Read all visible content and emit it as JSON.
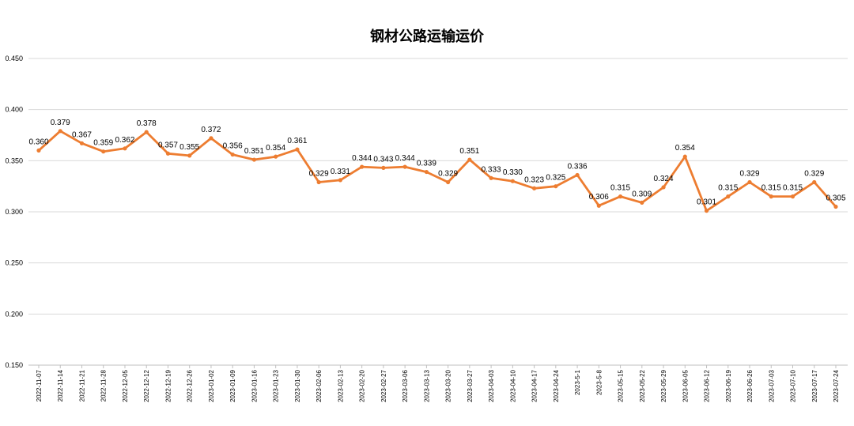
{
  "chart_data": {
    "type": "line",
    "title": "钢材公路运输运价",
    "xlabel": "",
    "ylabel": "",
    "ylim": [
      0.15,
      0.45
    ],
    "yticks": [
      "0.150",
      "0.200",
      "0.250",
      "0.300",
      "0.350",
      "0.400",
      "0.450"
    ],
    "grid": true,
    "legend": "none",
    "line_color": "#ED7D31",
    "categories": [
      "2022-11-07",
      "2022-11-14",
      "2022-11-21",
      "2022-11-28",
      "2022-12-05",
      "2022-12-12",
      "2022-12-19",
      "2022-12-26",
      "2023-01-02",
      "2023-01-09",
      "2023-01-16",
      "2023-01-23",
      "2023-01-30",
      "2023-02-06",
      "2023-02-13",
      "2023-02-20",
      "2023-02-27",
      "2023-03-06",
      "2023-03-13",
      "2023-03-20",
      "2023-03-27",
      "2023-04-03",
      "2023-04-10",
      "2023-04-17",
      "2023-04-24",
      "2023-5-1",
      "2023-5-8",
      "2023-05-15",
      "2023-05-22",
      "2023-05-29",
      "2023-06-05",
      "2023-06-12",
      "2023-06-19",
      "2023-06-26",
      "2023-07-03",
      "2023-07-10",
      "2023-07-17",
      "2023-07-24"
    ],
    "series": [
      {
        "values": [
          0.36,
          0.379,
          0.367,
          0.359,
          0.362,
          0.378,
          0.357,
          0.355,
          0.372,
          0.356,
          0.351,
          0.354,
          0.361,
          0.329,
          0.331,
          0.344,
          0.343,
          0.344,
          0.339,
          0.329,
          0.351,
          0.333,
          0.33,
          0.323,
          0.325,
          0.336,
          0.306,
          0.315,
          0.309,
          0.324,
          0.354,
          0.301,
          0.315,
          0.329,
          0.315,
          0.315,
          0.329,
          0.305
        ],
        "labels": [
          "0.360",
          "0.379",
          "0.367",
          "0.359",
          "0.362",
          "0.378",
          "0.357",
          "0.355",
          "0.372",
          "0.356",
          "0.351",
          "0.354",
          "0.361",
          "0.329",
          "0.331",
          "0.344",
          "0.343",
          "0.344",
          "0.339",
          "0.329",
          "0.351",
          "0.333",
          "0.330",
          "0.323",
          "0.325",
          "0.336",
          "0.306",
          "0.315",
          "0.309",
          "0.324",
          "0.354",
          "0.301",
          "0.315",
          "0.329",
          "0.315",
          "0.315",
          "0.329",
          "0.305"
        ]
      }
    ]
  }
}
